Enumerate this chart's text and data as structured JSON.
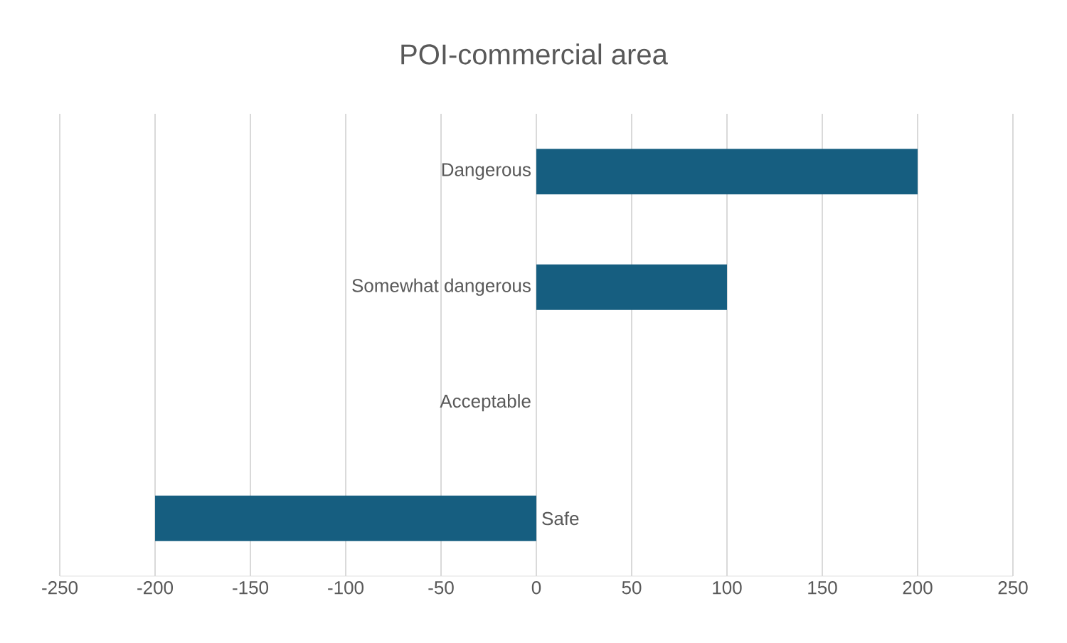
{
  "chart_data": {
    "type": "bar",
    "orientation": "horizontal",
    "title": "POI-commercial area",
    "categories": [
      "Dangerous",
      "Somewhat dangerous",
      "Acceptable",
      "Safe"
    ],
    "values": [
      200,
      100,
      0,
      -200
    ],
    "color": "#165e80",
    "xlim": [
      -250,
      250
    ],
    "xticks": [
      -250,
      -200,
      -150,
      -100,
      -50,
      0,
      50,
      100,
      150,
      200,
      250
    ],
    "grid": "x"
  }
}
